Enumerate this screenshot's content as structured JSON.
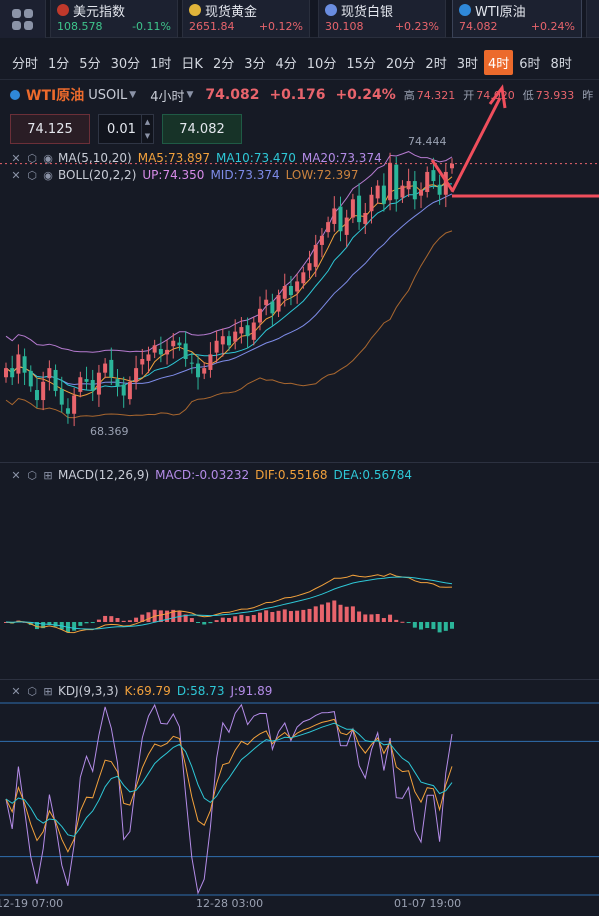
{
  "tickers": [
    {
      "name": "美元指数",
      "price": "108.578",
      "change": "-0.11%",
      "dir": "down",
      "flag_color": "#c0392b"
    },
    {
      "name": "现货黄金",
      "price": "2651.84",
      "change": "+0.12%",
      "dir": "up",
      "flag_color": "#e0b43a"
    },
    {
      "name": "现货白银",
      "price": "30.108",
      "change": "+0.23%",
      "dir": "up",
      "flag_color": "#6a8de0"
    },
    {
      "name": "WTI原油",
      "price": "74.082",
      "change": "+0.24%",
      "dir": "up",
      "flag_color": "#2f88d8"
    }
  ],
  "timeframes": [
    "分时",
    "1分",
    "5分",
    "30分",
    "1时",
    "日K",
    "2分",
    "3分",
    "4分",
    "10分",
    "15分",
    "20分",
    "2时",
    "3时",
    "4时",
    "6时",
    "8时"
  ],
  "active_timeframe": "4时",
  "symbol": {
    "name": "WTI原油",
    "code": "USOIL",
    "period": "4小时",
    "last": "74.082",
    "change": "+0.176",
    "percent": "+0.24%",
    "high_label": "高",
    "high": "74.321",
    "open_label": "开",
    "open": "74.020",
    "low_label": "低",
    "low": "73.933",
    "prev_label": "昨"
  },
  "order": {
    "sell_price": "74.125",
    "quantity": "0.01",
    "buy_price": "74.082"
  },
  "legends": {
    "ma": {
      "name": "MA(5,10,20)",
      "ma5": "MA5:73.897",
      "ma10": "MA10:73.470",
      "ma20": "MA20:73.374"
    },
    "boll": {
      "name": "BOLL(20,2,2)",
      "up": "UP:74.350",
      "mid": "MID:73.374",
      "low": "LOW:72.397"
    },
    "macd": {
      "name": "MACD(12,26,9)",
      "macd": "MACD:-0.03232",
      "dif": "DIF:0.55168",
      "dea": "DEA:0.56784"
    },
    "kdj": {
      "name": "KDJ(9,3,3)",
      "k": "K:69.79",
      "d": "D:58.73",
      "j": "J:91.89"
    }
  },
  "annotations": {
    "peak": "74.444",
    "trough": "68.369"
  },
  "x_axis": [
    "12-19 07:00",
    "12-28 03:00",
    "01-07 19:00"
  ],
  "colors": {
    "up": "#e8646c",
    "down": "#2bb59a",
    "accent": "#ec6a2c",
    "bg": "#161a25"
  },
  "chart_data": {
    "type": "candlestick",
    "price_range": [
      68.369,
      74.444
    ],
    "closes": [
      69.6,
      69.4,
      69.9,
      69.5,
      69.2,
      68.9,
      69.3,
      69.6,
      69.1,
      68.8,
      68.6,
      69.0,
      69.4,
      69.3,
      69.1,
      69.5,
      69.7,
      69.4,
      69.2,
      69.0,
      69.3,
      69.6,
      69.8,
      69.9,
      70.1,
      69.9,
      70.0,
      70.2,
      70.1,
      69.8,
      69.7,
      69.4,
      69.6,
      69.9,
      70.2,
      70.3,
      70.1,
      70.4,
      70.5,
      70.3,
      70.6,
      70.9,
      71.1,
      70.8,
      71.2,
      71.4,
      71.2,
      71.5,
      71.7,
      71.9,
      72.3,
      72.5,
      72.8,
      73.1,
      72.6,
      72.9,
      73.3,
      72.8,
      73.0,
      73.4,
      73.6,
      73.2,
      74.1,
      73.3,
      73.6,
      73.7,
      73.3,
      73.5,
      73.9,
      73.7,
      73.4,
      73.9,
      74.08
    ]
  }
}
